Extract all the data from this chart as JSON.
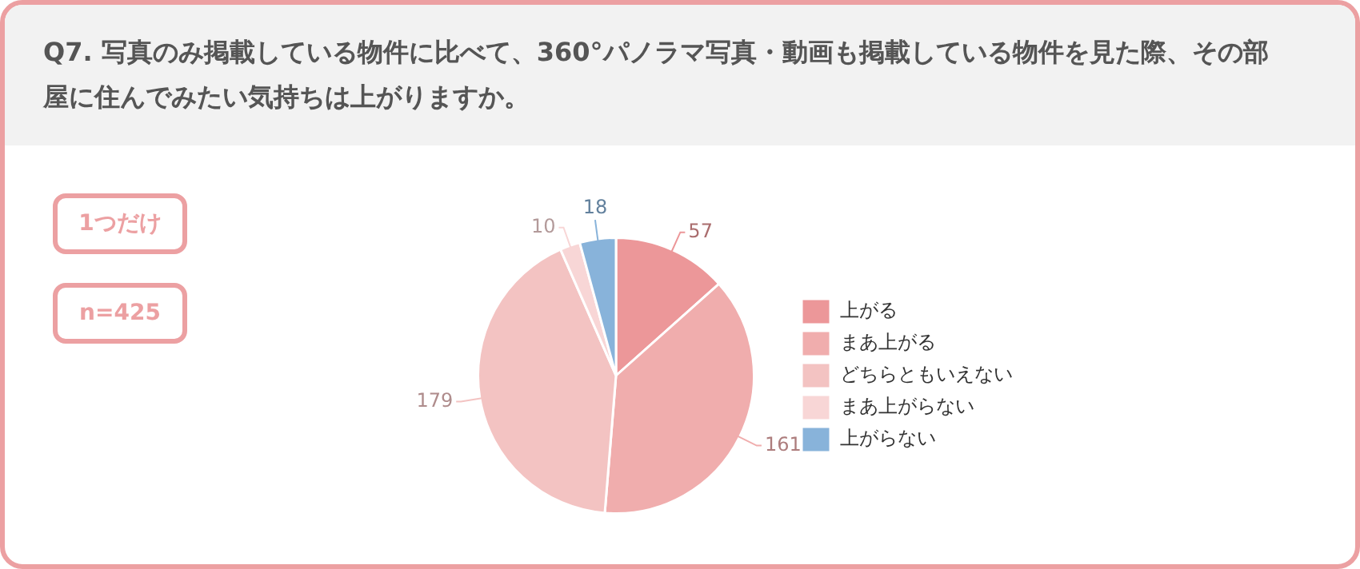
{
  "chart_data": {
    "type": "pie",
    "title": "Q7.  写真のみ掲載している物件に比べて、360°パノラマ写真・動画も掲載している物件を見た際、その部屋に住んでみたい気持ちは上がりますか。",
    "categories": [
      "上がる",
      "まあ上がる",
      "どちらともいえない",
      "まあ上がらない",
      "上がらない"
    ],
    "values": [
      57,
      161,
      179,
      10,
      18
    ],
    "colors": [
      "#ec9799",
      "#f0adad",
      "#f3c3c2",
      "#f8d6d6",
      "#88b3da"
    ],
    "annotations": [
      "1つだけ",
      "n=425"
    ],
    "data_labels": true,
    "legend": "right"
  }
}
